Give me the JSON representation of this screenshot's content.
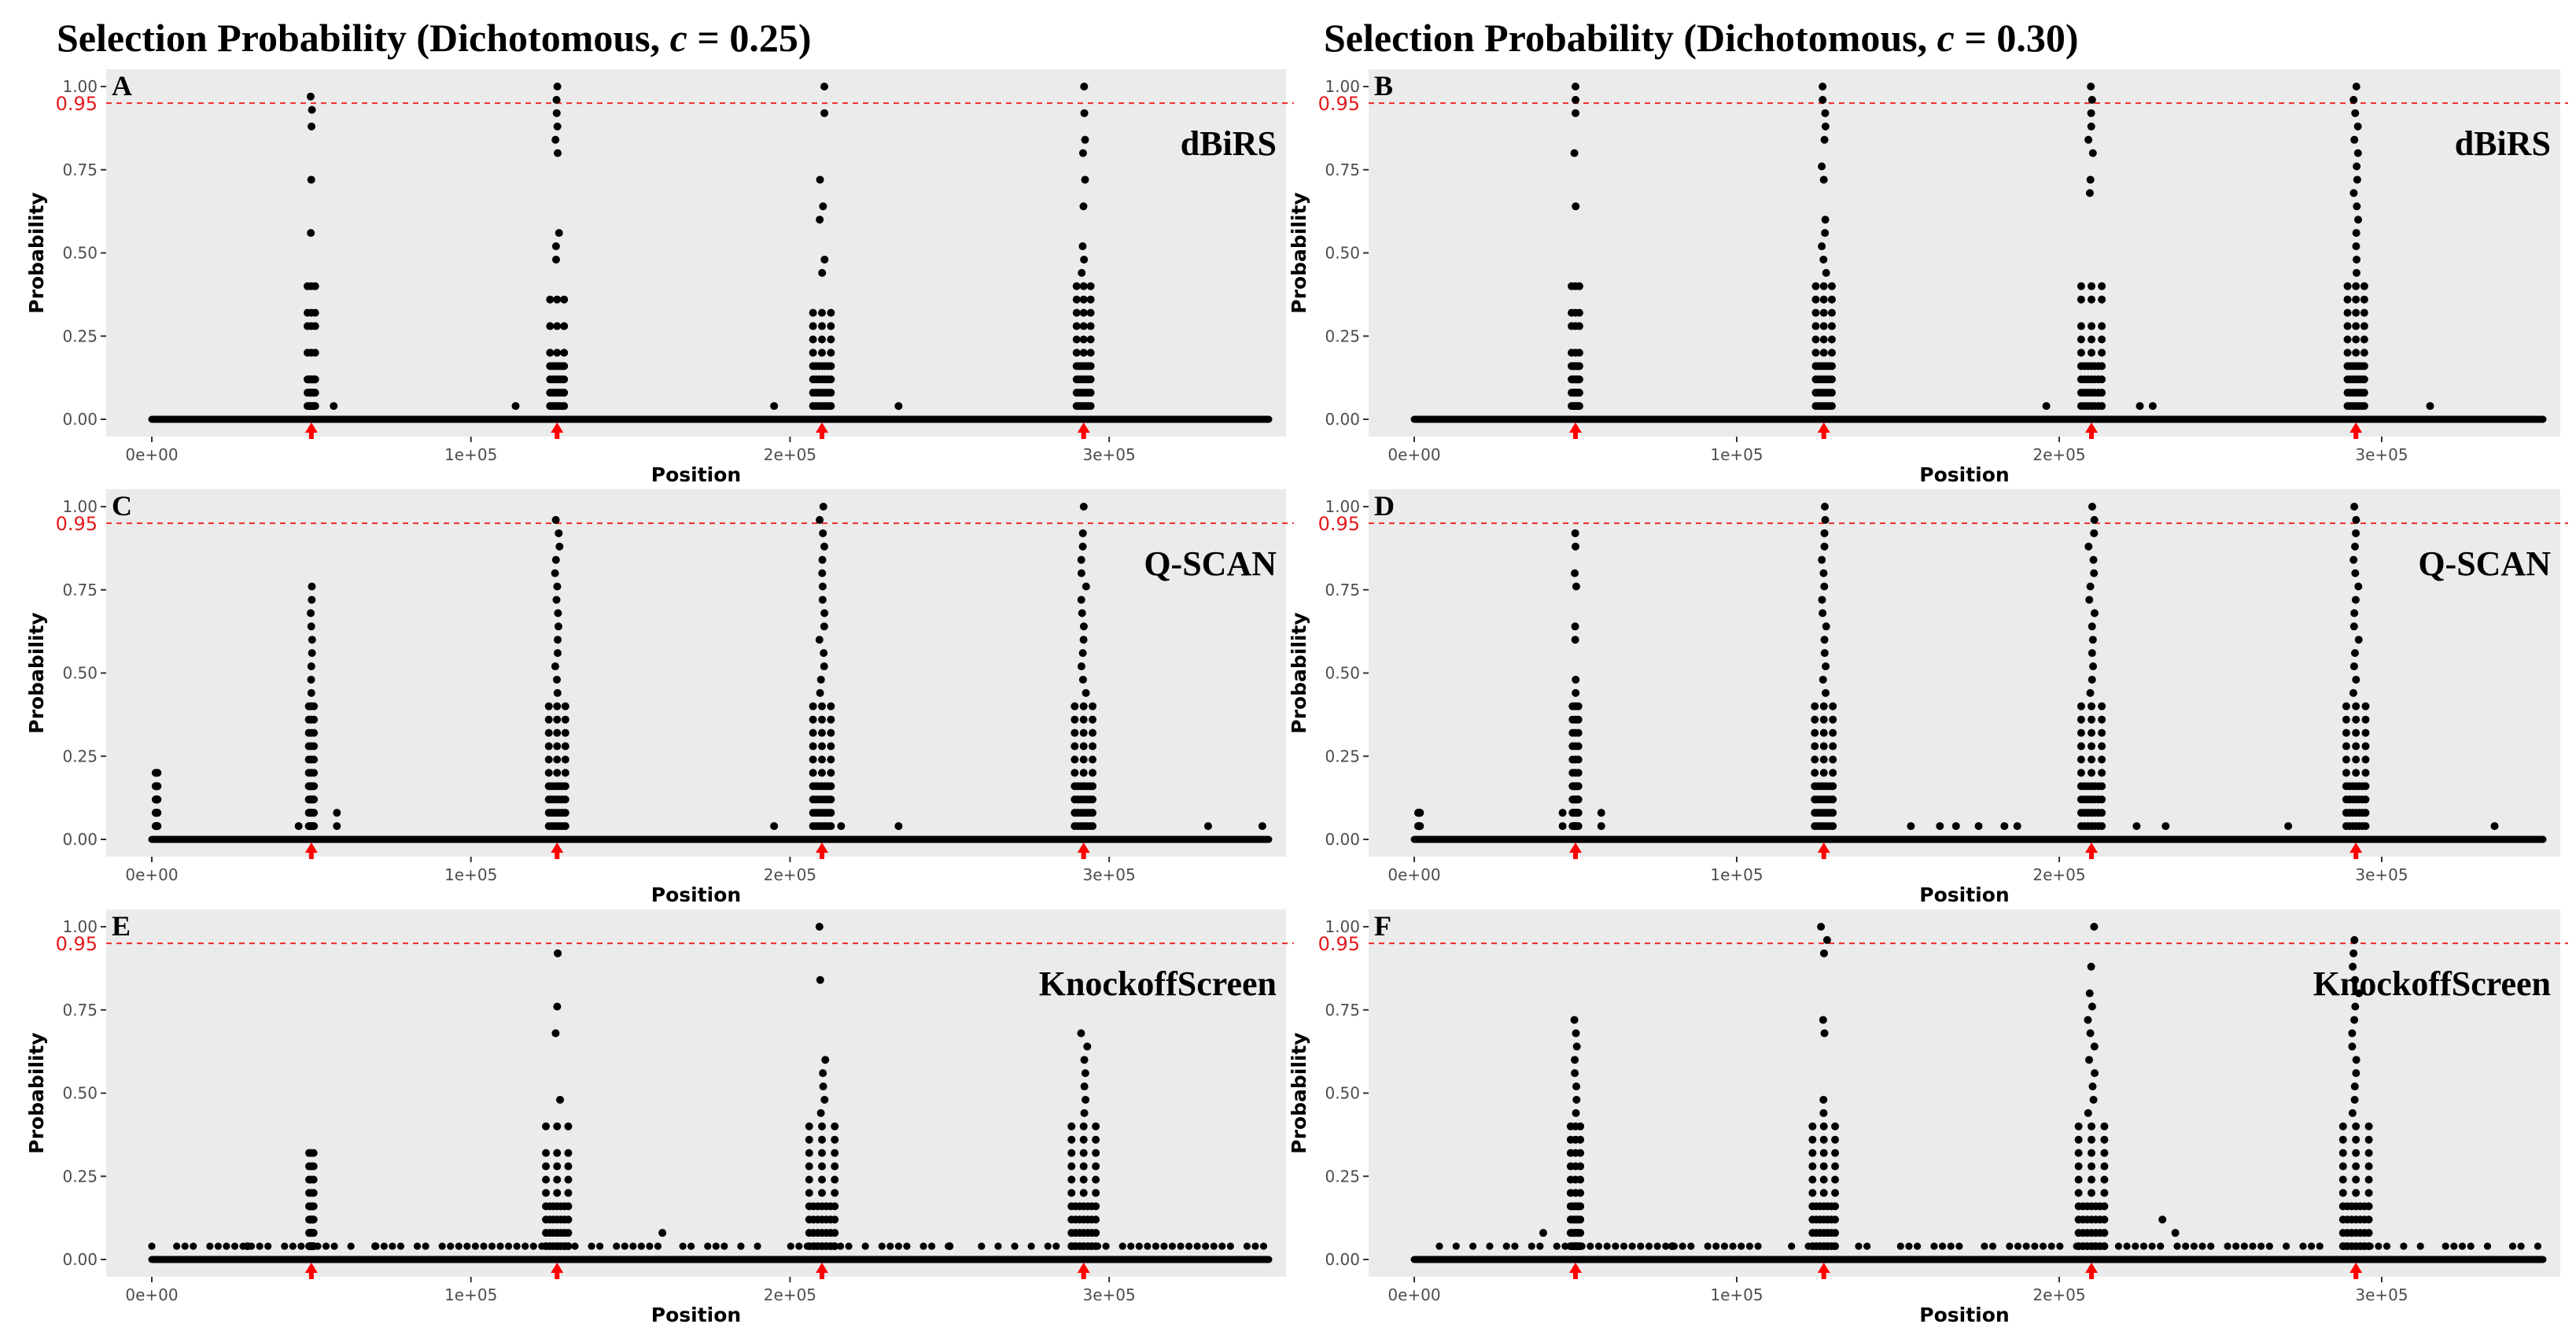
{
  "figure": {
    "column_titles": [
      {
        "prefix": "Selection Probability (Dichotomous, ",
        "var": "c",
        "suffix": " = 0.25)"
      },
      {
        "prefix": "Selection Probability (Dichotomous, ",
        "var": "c",
        "suffix": " = 0.30)"
      }
    ]
  },
  "chart_data": [
    {
      "panel": "A",
      "type": "scatter",
      "method": "dBiRS",
      "c": 0.25,
      "xlabel": "Position",
      "ylabel": "Probability",
      "xlim": [
        0,
        350000
      ],
      "ylim": [
        0,
        1
      ],
      "x_ticks": [
        0,
        100000,
        200000,
        300000
      ],
      "x_tick_labels": [
        "0e+00",
        "1e+05",
        "2e+05",
        "3e+05"
      ],
      "y_ticks": [
        0,
        0.25,
        0.5,
        0.75,
        1
      ],
      "y_tick_labels": [
        "0.00",
        "0.25",
        "0.50",
        "0.75",
        "1.00"
      ],
      "threshold": 0.95,
      "threshold_label": "0.95",
      "causal_positions": [
        50000,
        127000,
        210000,
        292000
      ],
      "clusters": [
        {
          "center": 50000,
          "spread": 1200,
          "values": [
            0.97,
            0.93,
            0.88,
            0.72,
            0.56,
            0.4,
            0.32,
            0.28,
            0.2,
            0.12,
            0.08,
            0.04
          ]
        },
        {
          "center": 127000,
          "spread": 2200,
          "values": [
            1.0,
            0.96,
            0.92,
            0.88,
            0.84,
            0.8,
            0.56,
            0.52,
            0.48,
            0.36,
            0.28,
            0.2,
            0.16,
            0.12,
            0.08,
            0.04
          ]
        },
        {
          "center": 210000,
          "spread": 2800,
          "values": [
            1.0,
            0.92,
            0.72,
            0.64,
            0.6,
            0.48,
            0.44,
            0.32,
            0.28,
            0.24,
            0.2,
            0.16,
            0.12,
            0.08,
            0.04
          ]
        },
        {
          "center": 292000,
          "spread": 2200,
          "values": [
            1.0,
            0.92,
            0.84,
            0.8,
            0.72,
            0.64,
            0.52,
            0.48,
            0.44,
            0.4,
            0.36,
            0.32,
            0.28,
            0.24,
            0.2,
            0.16,
            0.12,
            0.08,
            0.04
          ]
        }
      ],
      "extra_points": [
        [
          57000,
          0.04
        ],
        [
          114000,
          0.04
        ],
        [
          195000,
          0.04
        ],
        [
          234000,
          0.04
        ]
      ]
    },
    {
      "panel": "B",
      "type": "scatter",
      "method": "dBiRS",
      "c": 0.3,
      "xlabel": "Position",
      "ylabel": "Probability",
      "xlim": [
        0,
        350000
      ],
      "ylim": [
        0,
        1
      ],
      "x_ticks": [
        0,
        100000,
        200000,
        300000
      ],
      "x_tick_labels": [
        "0e+00",
        "1e+05",
        "2e+05",
        "3e+05"
      ],
      "y_ticks": [
        0,
        0.25,
        0.5,
        0.75,
        1
      ],
      "y_tick_labels": [
        "0.00",
        "0.25",
        "0.50",
        "0.75",
        "1.00"
      ],
      "threshold": 0.95,
      "threshold_label": "0.95",
      "causal_positions": [
        50000,
        127000,
        210000,
        292000
      ],
      "clusters": [
        {
          "center": 50000,
          "spread": 1200,
          "values": [
            1.0,
            0.96,
            0.92,
            0.8,
            0.64,
            0.4,
            0.32,
            0.28,
            0.2,
            0.16,
            0.12,
            0.08,
            0.04
          ]
        },
        {
          "center": 127000,
          "spread": 2500,
          "values": [
            1.0,
            0.96,
            0.92,
            0.88,
            0.84,
            0.76,
            0.72,
            0.6,
            0.56,
            0.52,
            0.48,
            0.44,
            0.4,
            0.36,
            0.32,
            0.28,
            0.24,
            0.2,
            0.16,
            0.12,
            0.08,
            0.04
          ]
        },
        {
          "center": 210000,
          "spread": 3200,
          "values": [
            1.0,
            0.96,
            0.92,
            0.88,
            0.84,
            0.8,
            0.72,
            0.68,
            0.4,
            0.36,
            0.28,
            0.24,
            0.2,
            0.16,
            0.12,
            0.08,
            0.04
          ]
        },
        {
          "center": 292000,
          "spread": 2600,
          "values": [
            1.0,
            0.96,
            0.92,
            0.88,
            0.84,
            0.8,
            0.76,
            0.72,
            0.68,
            0.64,
            0.6,
            0.56,
            0.52,
            0.48,
            0.44,
            0.4,
            0.36,
            0.32,
            0.28,
            0.24,
            0.2,
            0.16,
            0.12,
            0.08,
            0.04
          ]
        }
      ],
      "extra_points": [
        [
          196000,
          0.04
        ],
        [
          225000,
          0.04
        ],
        [
          229000,
          0.04
        ],
        [
          315000,
          0.04
        ]
      ]
    },
    {
      "panel": "C",
      "type": "scatter",
      "method": "Q-SCAN",
      "c": 0.25,
      "xlabel": "Position",
      "ylabel": "Probability",
      "xlim": [
        0,
        350000
      ],
      "ylim": [
        0,
        1
      ],
      "x_ticks": [
        0,
        100000,
        200000,
        300000
      ],
      "x_tick_labels": [
        "0e+00",
        "1e+05",
        "2e+05",
        "3e+05"
      ],
      "y_ticks": [
        0,
        0.25,
        0.5,
        0.75,
        1
      ],
      "y_tick_labels": [
        "0.00",
        "0.25",
        "0.50",
        "0.75",
        "1.00"
      ],
      "threshold": 0.95,
      "threshold_label": "0.95",
      "causal_positions": [
        50000,
        127000,
        210000,
        292000
      ],
      "clusters": [
        {
          "center": 1500,
          "spread": 300,
          "values": [
            0.2,
            0.16,
            0.12,
            0.08,
            0.04
          ]
        },
        {
          "center": 50000,
          "spread": 800,
          "values": [
            0.76,
            0.72,
            0.68,
            0.64,
            0.6,
            0.56,
            0.52,
            0.48,
            0.44,
            0.4,
            0.36,
            0.32,
            0.28,
            0.24,
            0.2,
            0.16,
            0.12,
            0.08,
            0.04
          ]
        },
        {
          "center": 127000,
          "spread": 2600,
          "values": [
            0.96,
            0.92,
            0.88,
            0.84,
            0.8,
            0.76,
            0.72,
            0.68,
            0.64,
            0.6,
            0.56,
            0.52,
            0.48,
            0.44,
            0.4,
            0.36,
            0.32,
            0.28,
            0.24,
            0.2,
            0.16,
            0.12,
            0.08,
            0.04
          ]
        },
        {
          "center": 210000,
          "spread": 2800,
          "values": [
            1.0,
            0.96,
            0.92,
            0.88,
            0.84,
            0.8,
            0.76,
            0.72,
            0.68,
            0.64,
            0.6,
            0.56,
            0.52,
            0.48,
            0.44,
            0.4,
            0.36,
            0.32,
            0.28,
            0.24,
            0.2,
            0.16,
            0.12,
            0.08,
            0.04
          ]
        },
        {
          "center": 292000,
          "spread": 2800,
          "values": [
            1.0,
            0.92,
            0.88,
            0.84,
            0.8,
            0.76,
            0.72,
            0.68,
            0.64,
            0.6,
            0.56,
            0.52,
            0.48,
            0.44,
            0.4,
            0.36,
            0.32,
            0.28,
            0.24,
            0.2,
            0.16,
            0.12,
            0.08,
            0.04
          ]
        }
      ],
      "extra_points": [
        [
          46000,
          0.04
        ],
        [
          58000,
          0.08
        ],
        [
          58000,
          0.04
        ],
        [
          195000,
          0.04
        ],
        [
          216000,
          0.04
        ],
        [
          234000,
          0.04
        ],
        [
          331000,
          0.04
        ],
        [
          348000,
          0.04
        ]
      ]
    },
    {
      "panel": "D",
      "type": "scatter",
      "method": "Q-SCAN",
      "c": 0.3,
      "xlabel": "Position",
      "ylabel": "Probability",
      "xlim": [
        0,
        350000
      ],
      "ylim": [
        0,
        1
      ],
      "x_ticks": [
        0,
        100000,
        200000,
        300000
      ],
      "x_tick_labels": [
        "0e+00",
        "1e+05",
        "2e+05",
        "3e+05"
      ],
      "y_ticks": [
        0,
        0.25,
        0.5,
        0.75,
        1
      ],
      "y_tick_labels": [
        "0.00",
        "0.25",
        "0.50",
        "0.75",
        "1.00"
      ],
      "threshold": 0.95,
      "threshold_label": "0.95",
      "causal_positions": [
        50000,
        127000,
        210000,
        292000
      ],
      "clusters": [
        {
          "center": 1500,
          "spread": 300,
          "values": [
            0.08,
            0.04
          ]
        },
        {
          "center": 50000,
          "spread": 900,
          "values": [
            0.92,
            0.88,
            0.8,
            0.76,
            0.64,
            0.6,
            0.48,
            0.44,
            0.4,
            0.36,
            0.32,
            0.28,
            0.24,
            0.2,
            0.16,
            0.12,
            0.08,
            0.04
          ]
        },
        {
          "center": 127000,
          "spread": 2800,
          "values": [
            1.0,
            0.96,
            0.92,
            0.88,
            0.84,
            0.8,
            0.76,
            0.72,
            0.68,
            0.64,
            0.6,
            0.56,
            0.52,
            0.48,
            0.44,
            0.4,
            0.36,
            0.32,
            0.28,
            0.24,
            0.2,
            0.16,
            0.12,
            0.08,
            0.04
          ]
        },
        {
          "center": 210000,
          "spread": 3200,
          "values": [
            1.0,
            0.96,
            0.92,
            0.88,
            0.84,
            0.8,
            0.76,
            0.72,
            0.68,
            0.64,
            0.6,
            0.56,
            0.52,
            0.48,
            0.44,
            0.4,
            0.36,
            0.32,
            0.28,
            0.24,
            0.2,
            0.16,
            0.12,
            0.08,
            0.04
          ]
        },
        {
          "center": 292000,
          "spread": 3000,
          "values": [
            1.0,
            0.96,
            0.92,
            0.88,
            0.84,
            0.8,
            0.76,
            0.72,
            0.68,
            0.64,
            0.6,
            0.56,
            0.52,
            0.48,
            0.44,
            0.4,
            0.36,
            0.32,
            0.28,
            0.24,
            0.2,
            0.16,
            0.12,
            0.08,
            0.04
          ]
        }
      ],
      "extra_points": [
        [
          46000,
          0.08
        ],
        [
          46000,
          0.04
        ],
        [
          58000,
          0.08
        ],
        [
          58000,
          0.04
        ],
        [
          154000,
          0.04
        ],
        [
          163000,
          0.04
        ],
        [
          168000,
          0.04
        ],
        [
          175000,
          0.04
        ],
        [
          183000,
          0.04
        ],
        [
          187000,
          0.04
        ],
        [
          224000,
          0.04
        ],
        [
          233000,
          0.04
        ],
        [
          271000,
          0.04
        ],
        [
          335000,
          0.04
        ]
      ]
    },
    {
      "panel": "E",
      "type": "scatter",
      "method": "KnockoffScreen",
      "c": 0.25,
      "xlabel": "Position",
      "ylabel": "Probability",
      "xlim": [
        0,
        350000
      ],
      "ylim": [
        0,
        1
      ],
      "x_ticks": [
        0,
        100000,
        200000,
        300000
      ],
      "x_tick_labels": [
        "0e+00",
        "1e+05",
        "2e+05",
        "3e+05"
      ],
      "y_ticks": [
        0,
        0.25,
        0.5,
        0.75,
        1
      ],
      "y_tick_labels": [
        "0.00",
        "0.25",
        "0.50",
        "0.75",
        "1.00"
      ],
      "threshold": 0.95,
      "threshold_label": "0.95",
      "causal_positions": [
        50000,
        127000,
        210000,
        292000
      ],
      "clusters": [
        {
          "center": 50000,
          "spread": 700,
          "values": [
            0.32,
            0.28,
            0.24,
            0.2,
            0.16,
            0.12,
            0.08,
            0.04
          ]
        },
        {
          "center": 127000,
          "spread": 3500,
          "values": [
            0.92,
            0.76,
            0.68,
            0.48,
            0.4,
            0.32,
            0.28,
            0.24,
            0.2,
            0.16,
            0.12,
            0.08,
            0.04
          ]
        },
        {
          "center": 210000,
          "spread": 4000,
          "values": [
            1.0,
            0.84,
            0.6,
            0.56,
            0.52,
            0.48,
            0.44,
            0.4,
            0.36,
            0.32,
            0.28,
            0.24,
            0.2,
            0.16,
            0.12,
            0.08,
            0.04
          ]
        },
        {
          "center": 292000,
          "spread": 3800,
          "values": [
            0.68,
            0.64,
            0.6,
            0.56,
            0.52,
            0.48,
            0.44,
            0.4,
            0.36,
            0.32,
            0.28,
            0.24,
            0.2,
            0.16,
            0.12,
            0.08,
            0.04
          ]
        }
      ],
      "extra_points": [
        [
          30000,
          0.04
        ],
        [
          70000,
          0.04
        ],
        [
          160000,
          0.08
        ],
        [
          250000,
          0.04
        ]
      ],
      "dense_low_band": {
        "from": 0,
        "to": 350000,
        "value": 0.04
      }
    },
    {
      "panel": "F",
      "type": "scatter",
      "method": "KnockoffScreen",
      "c": 0.3,
      "xlabel": "Position",
      "ylabel": "Probability",
      "xlim": [
        0,
        350000
      ],
      "ylim": [
        0,
        1
      ],
      "x_ticks": [
        0,
        100000,
        200000,
        300000
      ],
      "x_tick_labels": [
        "0e+00",
        "1e+05",
        "2e+05",
        "3e+05"
      ],
      "y_ticks": [
        0,
        0.25,
        0.5,
        0.75,
        1
      ],
      "y_tick_labels": [
        "0.00",
        "0.25",
        "0.50",
        "0.75",
        "1.00"
      ],
      "threshold": 0.95,
      "threshold_label": "0.95",
      "causal_positions": [
        50000,
        127000,
        210000,
        292000
      ],
      "clusters": [
        {
          "center": 50000,
          "spread": 1500,
          "values": [
            0.72,
            0.68,
            0.64,
            0.6,
            0.56,
            0.52,
            0.48,
            0.44,
            0.4,
            0.36,
            0.32,
            0.28,
            0.24,
            0.2,
            0.16,
            0.12,
            0.08,
            0.04
          ]
        },
        {
          "center": 127000,
          "spread": 3500,
          "values": [
            1.0,
            0.96,
            0.92,
            0.72,
            0.68,
            0.48,
            0.44,
            0.4,
            0.36,
            0.32,
            0.28,
            0.24,
            0.2,
            0.16,
            0.12,
            0.08,
            0.04
          ]
        },
        {
          "center": 210000,
          "spread": 4000,
          "values": [
            1.0,
            0.88,
            0.8,
            0.76,
            0.72,
            0.68,
            0.64,
            0.6,
            0.56,
            0.52,
            0.48,
            0.44,
            0.4,
            0.36,
            0.32,
            0.28,
            0.24,
            0.2,
            0.16,
            0.12,
            0.08,
            0.04
          ]
        },
        {
          "center": 292000,
          "spread": 4000,
          "values": [
            0.96,
            0.92,
            0.88,
            0.84,
            0.8,
            0.76,
            0.72,
            0.68,
            0.64,
            0.6,
            0.56,
            0.52,
            0.48,
            0.44,
            0.4,
            0.36,
            0.32,
            0.28,
            0.24,
            0.2,
            0.16,
            0.12,
            0.08,
            0.04
          ]
        }
      ],
      "extra_points": [
        [
          40000,
          0.08
        ],
        [
          80000,
          0.04
        ],
        [
          232000,
          0.12
        ],
        [
          236000,
          0.08
        ]
      ],
      "dense_low_band": {
        "from": 0,
        "to": 350000,
        "value": 0.04
      }
    }
  ]
}
